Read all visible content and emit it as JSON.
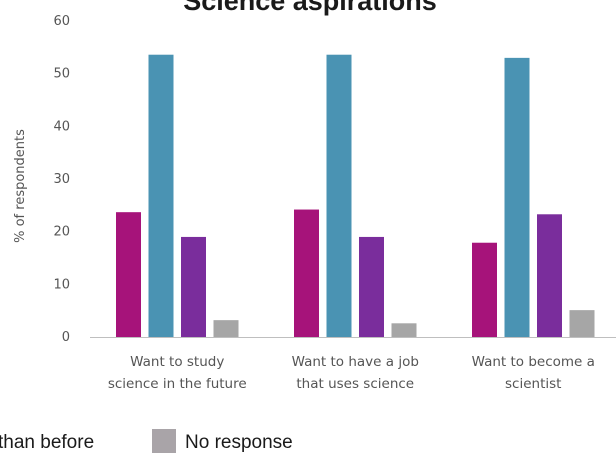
{
  "chart_data": {
    "type": "bar",
    "title": "Science aspirations",
    "ylabel": "% of respondents",
    "xlabel": "",
    "ylim": [
      0,
      60
    ],
    "yticks": [
      0,
      10,
      20,
      30,
      40,
      50,
      60
    ],
    "grid": false,
    "legend_position": "bottom",
    "categories": [
      [
        "Want to study",
        "science in the future"
      ],
      [
        "Want to have a job",
        "that uses science"
      ],
      [
        "Want to become a",
        "scientist"
      ]
    ],
    "series": [
      {
        "values": [
          23.7,
          24.2,
          17.9
        ],
        "color": "#a6137a"
      },
      {
        "values": [
          53.6,
          53.6,
          53.0
        ],
        "color": "#4a93b3"
      },
      {
        "values": [
          19.0,
          19.0,
          23.3
        ],
        "color": "#7a2d9c"
      },
      {
        "name": "No response",
        "values": [
          3.2,
          2.6,
          5.1
        ],
        "color": "#a6a6a6"
      }
    ],
    "legend": [
      {
        "label": "than before",
        "color": ""
      },
      {
        "label": "No response",
        "color": "#a9a4a8"
      }
    ]
  }
}
